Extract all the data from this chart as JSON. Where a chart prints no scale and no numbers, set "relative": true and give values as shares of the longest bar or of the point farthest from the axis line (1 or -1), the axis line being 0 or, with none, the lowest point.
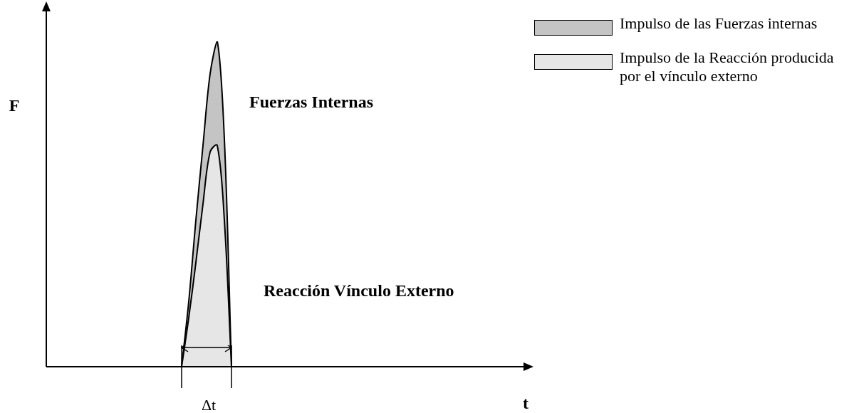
{
  "chart_data": {
    "type": "area",
    "relative": true,
    "xlabel": "t",
    "ylabel": "F",
    "legend": "top right",
    "categories": [
      null,
      null,
      null,
      null,
      null,
      null,
      null,
      null,
      null,
      null,
      null,
      null,
      null,
      null,
      null,
      null,
      null,
      null,
      null,
      null,
      null,
      null,
      null,
      null,
      null,
      null,
      null,
      null,
      null,
      null,
      null,
      null,
      null,
      null,
      null,
      null,
      null,
      null,
      null,
      null,
      null,
      null,
      null,
      null,
      null,
      null,
      null,
      null,
      null,
      null,
      null,
      null,
      null,
      null,
      null,
      null,
      null,
      null,
      null,
      null,
      null,
      null,
      null,
      null,
      null,
      null,
      null,
      null
    ],
    "series": [
      {
        "name": "Impulso de las Fuerzas internas",
        "color": "#c4c4c4",
        "values": [
          null,
          null,
          null,
          null,
          null,
          null,
          null,
          null,
          null,
          null,
          null,
          null,
          null,
          null,
          null,
          null,
          null,
          null,
          null,
          0,
          0.2,
          0.45,
          0.68,
          0.9,
          1,
          0.7,
          0,
          null,
          null,
          null,
          null,
          null,
          null,
          null,
          null,
          null,
          null,
          null,
          null,
          null,
          null,
          null,
          null,
          null,
          null,
          null,
          null,
          null,
          null,
          null,
          null,
          null,
          null,
          null,
          null,
          null,
          null,
          null,
          null,
          null,
          null,
          null,
          null,
          null,
          null,
          null,
          null,
          null
        ]
      },
      {
        "name": "Impulso de la Reacción producida por el vínculo externo",
        "color": "#e6e6e6",
        "values": [
          null,
          null,
          null,
          null,
          null,
          null,
          null,
          null,
          null,
          null,
          null,
          null,
          null,
          null,
          null,
          null,
          null,
          null,
          null,
          0,
          0.15,
          0.32,
          0.5,
          0.66,
          0.68,
          0.45,
          0,
          null,
          null,
          null,
          null,
          null,
          null,
          null,
          null,
          null,
          null,
          null,
          null,
          null,
          null,
          null,
          null,
          null,
          null,
          null,
          null,
          null,
          null,
          null,
          null,
          null,
          null,
          null,
          null,
          null,
          null,
          null,
          null,
          null,
          null,
          null,
          null,
          null,
          null,
          null,
          null,
          null
        ]
      }
    ],
    "annotations": [
      "Fuerzas Internas",
      "Reacción Vínculo Externo",
      "Δt"
    ]
  }
}
